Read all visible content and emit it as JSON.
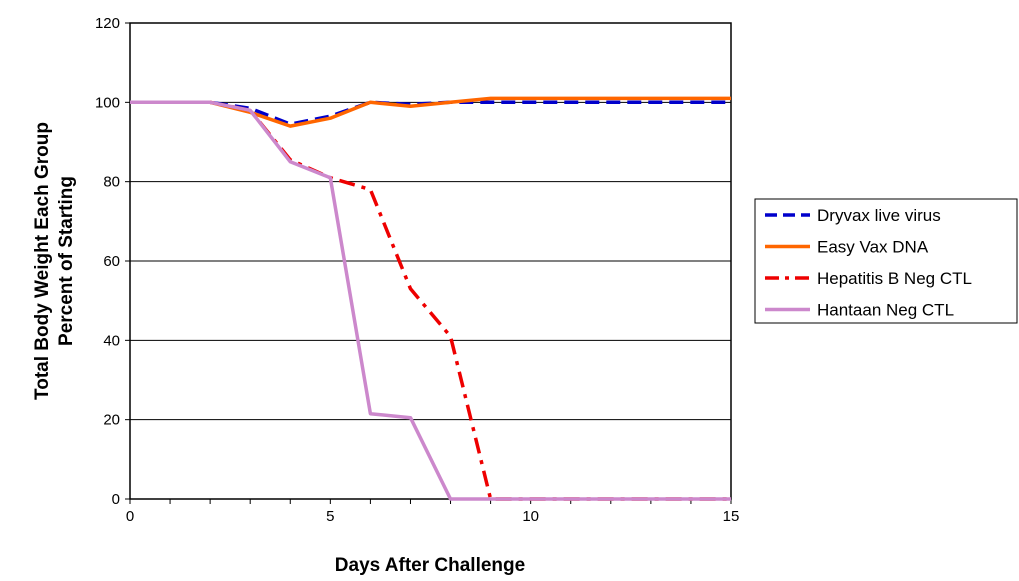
{
  "chart_data": {
    "type": "line",
    "title": "",
    "xlabel": "Days After Challenge",
    "ylabel_lines": [
      "Total Body Weight Each Group",
      "Percent of Starting"
    ],
    "xlim": [
      0,
      15
    ],
    "ylim": [
      0,
      120
    ],
    "x_ticks": [
      "0",
      "5",
      "10",
      "15"
    ],
    "y_ticks": [
      "0",
      "20",
      "40",
      "60",
      "80",
      "100",
      "120"
    ],
    "grid": "horizontal",
    "legend_position": "right",
    "x": [
      0,
      1,
      2,
      3,
      4,
      5,
      6,
      7,
      8,
      9,
      10,
      11,
      12,
      13,
      14,
      15
    ],
    "series": [
      {
        "name": "Dryvax live virus",
        "color": "#0000cc",
        "style": "dashed",
        "values": [
          100,
          100,
          100,
          98.5,
          94.5,
          96.5,
          100,
          99.5,
          100,
          100,
          100,
          100,
          100,
          100,
          100,
          100
        ]
      },
      {
        "name": "Easy Vax DNA",
        "color": "#ff6600",
        "style": "solid",
        "values": [
          100,
          100,
          100,
          97.5,
          94,
          96,
          100,
          99,
          100,
          101,
          101,
          101,
          101,
          101,
          101,
          101
        ]
      },
      {
        "name": "Hepatitis B Neg CTL",
        "color": "#ee0000",
        "style": "dashdot",
        "values": [
          100,
          100,
          100,
          98,
          85.5,
          81,
          78,
          53,
          41,
          0,
          0,
          0,
          0,
          0,
          0,
          0
        ]
      },
      {
        "name": "Hantaan Neg CTL",
        "color": "#cc88cc",
        "style": "solid",
        "values": [
          100,
          100,
          100,
          98,
          85,
          81,
          21.5,
          20.5,
          0,
          0,
          0,
          0,
          0,
          0,
          0,
          0
        ]
      }
    ]
  }
}
